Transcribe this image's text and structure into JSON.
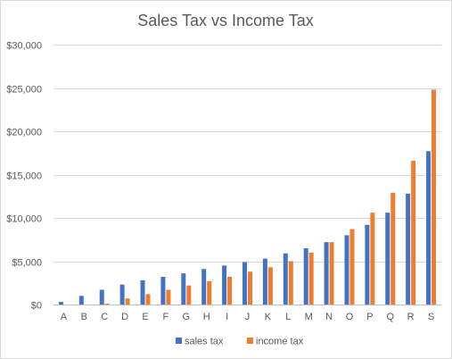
{
  "chart_data": {
    "type": "bar",
    "title": "Sales Tax vs Income Tax",
    "xlabel": "",
    "ylabel": "",
    "ylim": [
      0,
      30000
    ],
    "yticks": [
      0,
      5000,
      10000,
      15000,
      20000,
      25000,
      30000
    ],
    "ytick_labels": [
      "$0",
      "$5,000",
      "$10,000",
      "$15,000",
      "$20,000",
      "$25,000",
      "$30,000"
    ],
    "grid": true,
    "legend_position": "bottom",
    "categories": [
      "A",
      "B",
      "C",
      "D",
      "E",
      "F",
      "G",
      "H",
      "I",
      "J",
      "K",
      "L",
      "M",
      "N",
      "O",
      "P",
      "Q",
      "R",
      "S"
    ],
    "series": [
      {
        "name": "sales tax",
        "color": "#4472c4",
        "values": [
          300,
          1000,
          1700,
          2300,
          2800,
          3200,
          3600,
          4100,
          4500,
          4900,
          5300,
          5900,
          6500,
          7200,
          8000,
          9200,
          10600,
          12800,
          17700
        ]
      },
      {
        "name": "income tax",
        "color": "#ed7d31",
        "values": [
          0,
          0,
          100,
          700,
          1200,
          1700,
          2200,
          2700,
          3200,
          3800,
          4300,
          5000,
          6000,
          7200,
          8700,
          10600,
          12900,
          16600,
          24800
        ]
      }
    ]
  }
}
